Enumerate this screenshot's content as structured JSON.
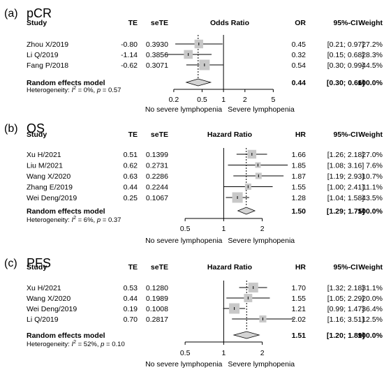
{
  "chart_data": [
    {
      "type": "forest",
      "panel_label": "(a)",
      "title": "pCR",
      "headers": {
        "study": "Study",
        "te": "TE",
        "sete": "seTE",
        "plot": "Odds Ratio",
        "est": "OR",
        "ci": "95%-CI",
        "weight": "Weight"
      },
      "studies": [
        {
          "study": "Zhou X/2019",
          "te": "-0.80",
          "sete": "0.3930",
          "est": 0.45,
          "lo": 0.21,
          "hi": 0.97,
          "est_text": "0.45",
          "ci_text": "[0.21; 0.97]",
          "weight": "27.2%",
          "weight_value": 27.2
        },
        {
          "study": "Li Q/2019",
          "te": "-1.14",
          "sete": "0.3856",
          "est": 0.32,
          "lo": 0.15,
          "hi": 0.68,
          "est_text": "0.32",
          "ci_text": "[0.15; 0.68]",
          "weight": "28.3%",
          "weight_value": 28.3
        },
        {
          "study": "Fang P/2018",
          "te": "-0.62",
          "sete": "0.3071",
          "est": 0.54,
          "lo": 0.3,
          "hi": 0.99,
          "est_text": "0.54",
          "ci_text": "[0.30; 0.99]",
          "weight": "44.5%",
          "weight_value": 44.5
        }
      ],
      "pooled": {
        "label": "Random effects model",
        "est": 0.44,
        "lo": 0.3,
        "hi": 0.66,
        "est_text": "0.44",
        "ci_text": "[0.30; 0.66]",
        "weight": "100.0%"
      },
      "heterogeneity": {
        "prefix": "Heterogeneity: ",
        "i2_label": "I",
        "i2_value": " = 0%, ",
        "p_value": " = 0.57"
      },
      "x_scale": "log",
      "xlim": [
        0.16,
        6.5
      ],
      "ticks": [
        {
          "value": 0.2,
          "label": "0.2"
        },
        {
          "value": 0.5,
          "label": "0.5"
        },
        {
          "value": 1,
          "label": "1"
        },
        {
          "value": 2,
          "label": "2"
        },
        {
          "value": 5,
          "label": "5"
        }
      ],
      "left_label": "No severe lymphopenia",
      "right_label": "Severe lymphopenia"
    },
    {
      "type": "forest",
      "panel_label": "(b)",
      "title": "OS",
      "headers": {
        "study": "Study",
        "te": "TE",
        "sete": "seTE",
        "plot": "Hazard Ratio",
        "est": "HR",
        "ci": "95%-CI",
        "weight": "Weight"
      },
      "studies": [
        {
          "study": "Xu H/2021",
          "te": "0.51",
          "sete": "0.1399",
          "est": 1.66,
          "lo": 1.26,
          "hi": 2.18,
          "est_text": "1.66",
          "ci_text": "[1.26; 2.18]",
          "weight": "27.0%",
          "weight_value": 27.0
        },
        {
          "study": "Liu M/2021",
          "te": "0.62",
          "sete": "0.2731",
          "est": 1.85,
          "lo": 1.08,
          "hi": 3.16,
          "est_text": "1.85",
          "ci_text": "[1.08; 3.16]",
          "weight": "7.6%",
          "weight_value": 7.6
        },
        {
          "study": "Wang X/2020",
          "te": "0.63",
          "sete": "0.2286",
          "est": 1.87,
          "lo": 1.19,
          "hi": 2.93,
          "est_text": "1.87",
          "ci_text": "[1.19; 2.93]",
          "weight": "10.7%",
          "weight_value": 10.7
        },
        {
          "study": "Zhang E/2019",
          "te": "0.44",
          "sete": "0.2244",
          "est": 1.55,
          "lo": 1.0,
          "hi": 2.41,
          "est_text": "1.55",
          "ci_text": "[1.00; 2.41]",
          "weight": "11.1%",
          "weight_value": 11.1
        },
        {
          "study": "Wei Deng/2019",
          "te": "0.25",
          "sete": "0.1067",
          "est": 1.28,
          "lo": 1.04,
          "hi": 1.58,
          "est_text": "1.28",
          "ci_text": "[1.04; 1.58]",
          "weight": "43.5%",
          "weight_value": 43.5
        }
      ],
      "pooled": {
        "label": "Random effects model",
        "est": 1.5,
        "lo": 1.29,
        "hi": 1.75,
        "est_text": "1.50",
        "ci_text": "[1.29; 1.75]",
        "weight": "100.0%"
      },
      "heterogeneity": {
        "prefix": "Heterogeneity: ",
        "i2_label": "I",
        "i2_value": " = 6%, ",
        "p_value": " = 0.37"
      },
      "x_scale": "log",
      "xlim": [
        0.33,
        3.0
      ],
      "ticks": [
        {
          "value": 0.5,
          "label": "0.5"
        },
        {
          "value": 1,
          "label": "1"
        },
        {
          "value": 2,
          "label": "2"
        }
      ],
      "left_label": "No severe lymphopenia",
      "right_label": "Severe lymphopenia"
    },
    {
      "type": "forest",
      "panel_label": "(c)",
      "title": "PFS",
      "headers": {
        "study": "Study",
        "te": "TE",
        "sete": "seTE",
        "plot": "Hazard Ratio",
        "est": "HR",
        "ci": "95%-CI",
        "weight": "Weight"
      },
      "studies": [
        {
          "study": "Xu H/2021",
          "te": "0.53",
          "sete": "0.1280",
          "est": 1.7,
          "lo": 1.32,
          "hi": 2.18,
          "est_text": "1.70",
          "ci_text": "[1.32; 2.18]",
          "weight": "31.1%",
          "weight_value": 31.1
        },
        {
          "study": "Wang X/2020",
          "te": "0.44",
          "sete": "0.1989",
          "est": 1.55,
          "lo": 1.05,
          "hi": 2.29,
          "est_text": "1.55",
          "ci_text": "[1.05; 2.29]",
          "weight": "20.0%",
          "weight_value": 20.0
        },
        {
          "study": "Wei Deng/2019",
          "te": "0.19",
          "sete": "0.1008",
          "est": 1.21,
          "lo": 0.99,
          "hi": 1.47,
          "est_text": "1.21",
          "ci_text": "[0.99; 1.47]",
          "weight": "36.4%",
          "weight_value": 36.4
        },
        {
          "study": "Li Q/2019",
          "te": "0.70",
          "sete": "0.2817",
          "est": 2.02,
          "lo": 1.16,
          "hi": 3.51,
          "est_text": "2.02",
          "ci_text": "[1.16; 3.51]",
          "weight": "12.5%",
          "weight_value": 12.5
        }
      ],
      "pooled": {
        "label": "Random effects model",
        "est": 1.51,
        "lo": 1.2,
        "hi": 1.89,
        "est_text": "1.51",
        "ci_text": "[1.20; 1.89]",
        "weight": "100.0%"
      },
      "heterogeneity": {
        "prefix": "Heterogeneity: ",
        "i2_label": "I",
        "i2_value": " = 52%, ",
        "p_value": " = 0.10"
      },
      "x_scale": "log",
      "xlim": [
        0.33,
        3.0
      ],
      "ticks": [
        {
          "value": 0.5,
          "label": "0.5"
        },
        {
          "value": 1,
          "label": "1"
        },
        {
          "value": 2,
          "label": "2"
        }
      ],
      "left_label": "No severe lymphopenia",
      "right_label": "Severe lymphopenia"
    }
  ],
  "colors": {
    "square": "#c8c8c8",
    "diamond": "#d4d4d4",
    "line": "#000000",
    "ref_dotted": "#000000"
  }
}
